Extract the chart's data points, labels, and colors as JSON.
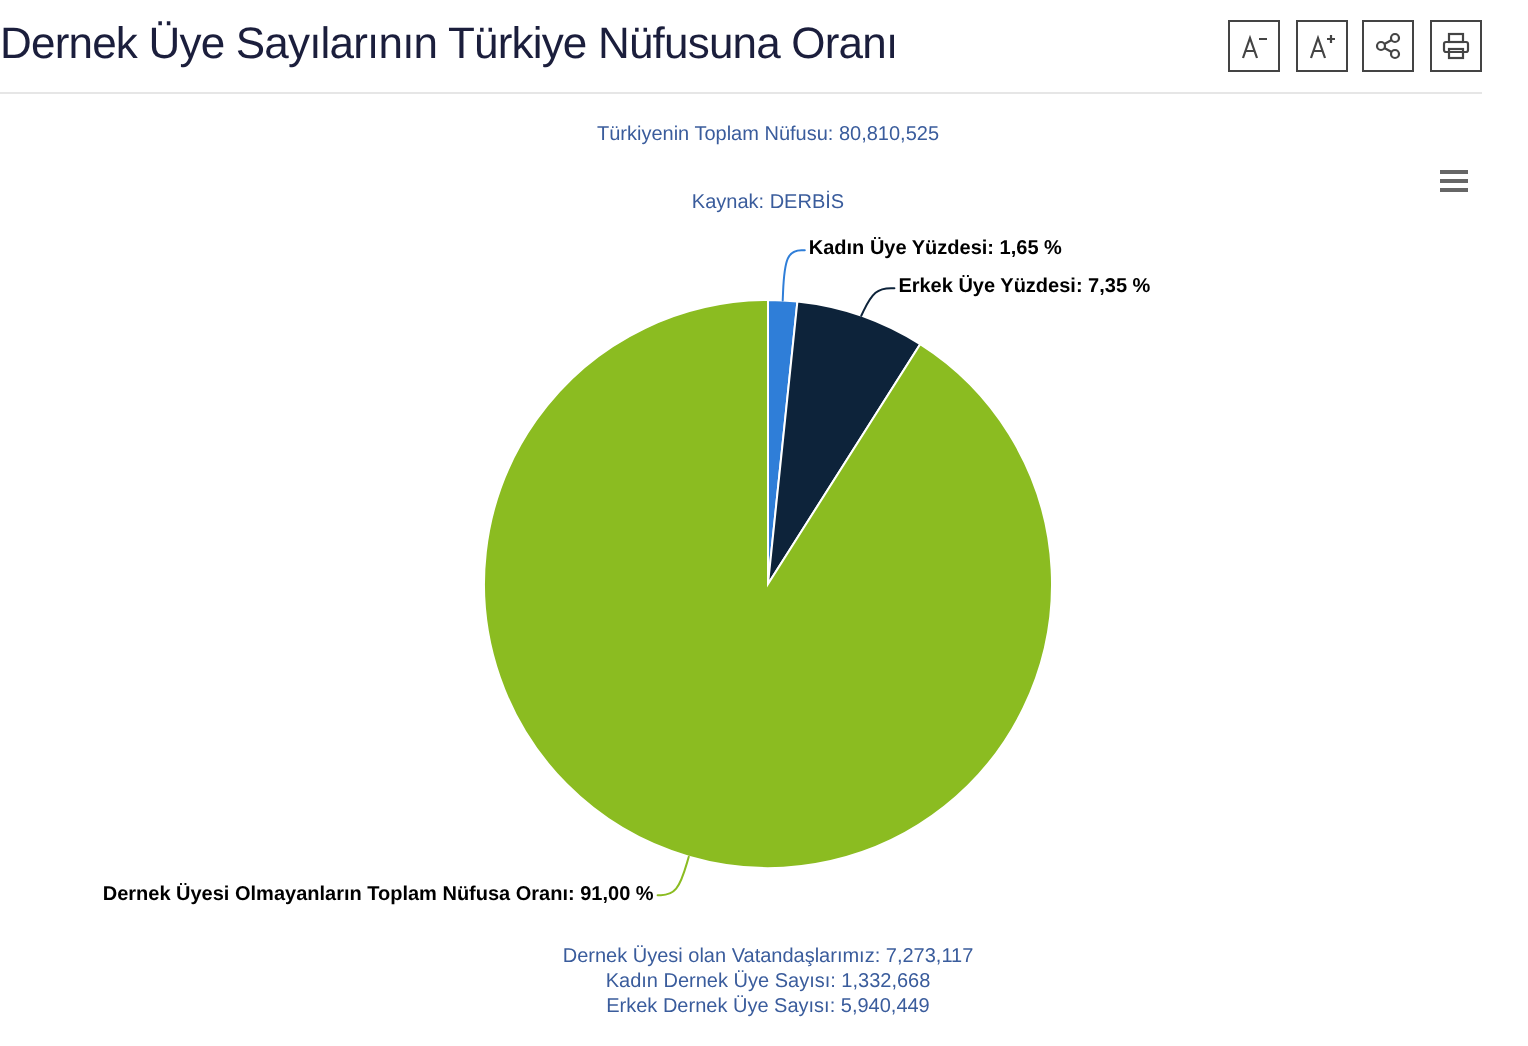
{
  "chart_data": {
    "type": "pie",
    "title": "Dernek Üye Sayılarının Türkiye Nüfusuna Oranı",
    "subtitle": "Türkiyenin Toplam Nüfusu: 80,810,525",
    "annotations": [
      "Kaynak: DERBİS",
      "Dernek Üyesi olan Vatandaşlarımız: 7,273,117",
      "Kadın Dernek Üye Sayısı: 1,332,668",
      "Erkek Dernek Üye Sayısı: 5,940,449"
    ],
    "categories": [
      "Kadın Üye Yüzdesi",
      "Erkek Üye Yüzdesi",
      "Dernek Üyesi Olmayanların Toplam Nüfusa Oranı"
    ],
    "values": [
      1.65,
      7.35,
      91.0
    ],
    "colors": [
      "#2f7ed8",
      "#0d233a",
      "#8bbc21"
    ],
    "value_labels": [
      "1,65 %",
      "7,35 %",
      "91,00 %"
    ]
  }
}
